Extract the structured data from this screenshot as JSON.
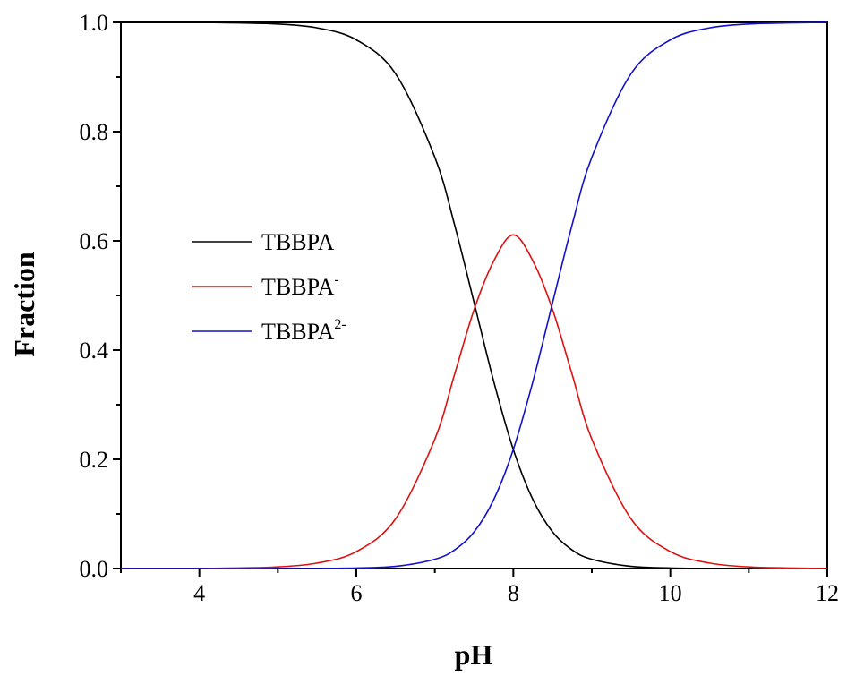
{
  "chart_data": {
    "type": "line",
    "title": "",
    "xlabel": "pH",
    "ylabel": "Fraction",
    "xlim": [
      3,
      12
    ],
    "ylim": [
      0.0,
      1.0
    ],
    "xticks": [
      4,
      6,
      8,
      10,
      12
    ],
    "xtick_labels": [
      "4",
      "6",
      "8",
      "10",
      "12"
    ],
    "yticks": [
      0.0,
      0.2,
      0.4,
      0.6,
      0.8,
      1.0
    ],
    "ytick_labels": [
      "0.0",
      "0.2",
      "0.4",
      "0.6",
      "0.8",
      "1.0"
    ],
    "grid": false,
    "legend_position": "center-left",
    "x": [
      3.0,
      3.5,
      4.0,
      4.5,
      5.0,
      5.5,
      6.0,
      6.5,
      7.0,
      7.25,
      7.5,
      7.75,
      8.0,
      8.25,
      8.5,
      8.75,
      9.0,
      9.5,
      10.0,
      10.5,
      11.0,
      11.5,
      12.0
    ],
    "series": [
      {
        "name": "TBBPA",
        "base": "TBBPA",
        "sup": "",
        "color": "#000000",
        "values": [
          1.0,
          1.0,
          1.0,
          0.999,
          0.997,
          0.99,
          0.968,
          0.906,
          0.753,
          0.63,
          0.487,
          0.343,
          0.218,
          0.126,
          0.067,
          0.034,
          0.017,
          0.004,
          0.001,
          0.0,
          0.0,
          0.0,
          0.0
        ]
      },
      {
        "name": "TBBPA-",
        "base": "TBBPA",
        "sup": "-",
        "color": "#dd1111",
        "values": [
          0.0,
          0.0,
          0.0,
          0.001,
          0.003,
          0.01,
          0.031,
          0.091,
          0.237,
          0.355,
          0.474,
          0.563,
          0.611,
          0.563,
          0.474,
          0.355,
          0.237,
          0.091,
          0.031,
          0.01,
          0.003,
          0.001,
          0.0
        ]
      },
      {
        "name": "TBBPA2-",
        "base": "TBBPA",
        "sup": "2-",
        "color": "#1111cc",
        "values": [
          0.0,
          0.0,
          0.0,
          0.0,
          0.0,
          0.0,
          0.001,
          0.004,
          0.017,
          0.034,
          0.067,
          0.126,
          0.218,
          0.343,
          0.487,
          0.63,
          0.753,
          0.906,
          0.968,
          0.99,
          0.997,
          0.999,
          1.0
        ]
      }
    ]
  }
}
